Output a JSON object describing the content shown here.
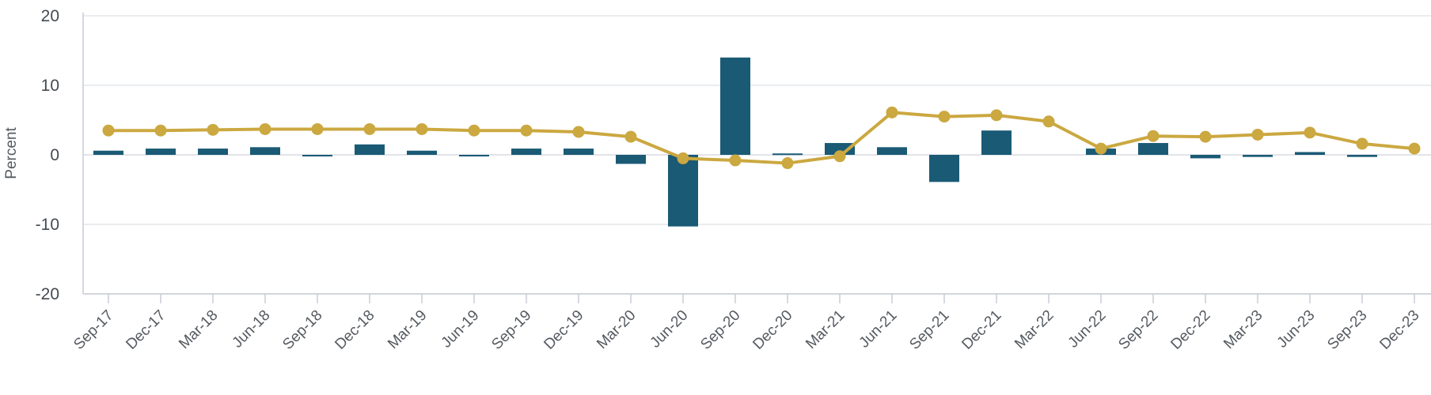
{
  "chart_data": {
    "type": "bar+line",
    "title": "",
    "xlabel": "",
    "ylabel": "Percent",
    "ylim": [
      -20,
      20
    ],
    "yticks": [
      "20",
      "10",
      "0",
      "-10",
      "-20"
    ],
    "categories": [
      "Sep-17",
      "Dec-17",
      "Mar-18",
      "Jun-18",
      "Sep-18",
      "Dec-18",
      "Mar-19",
      "Jun-19",
      "Sep-19",
      "Dec-19",
      "Mar-20",
      "Jun-20",
      "Sep-20",
      "Dec-20",
      "Mar-21",
      "Jun-21",
      "Sep-21",
      "Dec-21",
      "Mar-22",
      "Jun-22",
      "Sep-22",
      "Dec-22",
      "Mar-23",
      "Jun-23",
      "Sep-23",
      "Dec-23"
    ],
    "series": [
      {
        "type": "bar",
        "color": "#1a5a75",
        "values": [
          0.6,
          0.9,
          0.9,
          1.1,
          -0.2,
          1.5,
          0.6,
          -0.2,
          0.9,
          0.9,
          -1.3,
          -10.3,
          14.0,
          0.2,
          1.7,
          1.1,
          -3.9,
          3.5,
          0.0,
          0.9,
          1.7,
          -0.5,
          -0.3,
          0.4,
          -0.3,
          0.0
        ]
      },
      {
        "type": "line",
        "color": "#cba840",
        "values": [
          3.5,
          3.5,
          3.6,
          3.7,
          3.7,
          3.7,
          3.7,
          3.5,
          3.5,
          3.3,
          2.6,
          -0.5,
          -0.8,
          -1.2,
          -0.2,
          6.1,
          5.5,
          5.7,
          4.8,
          0.9,
          2.7,
          2.6,
          2.9,
          3.2,
          1.6,
          0.9
        ]
      }
    ],
    "grid": true,
    "legend": "none",
    "colors": {
      "grid": "#e3e5ea",
      "axis": "#c9ccd6",
      "zero": "#d9dbe2"
    }
  }
}
